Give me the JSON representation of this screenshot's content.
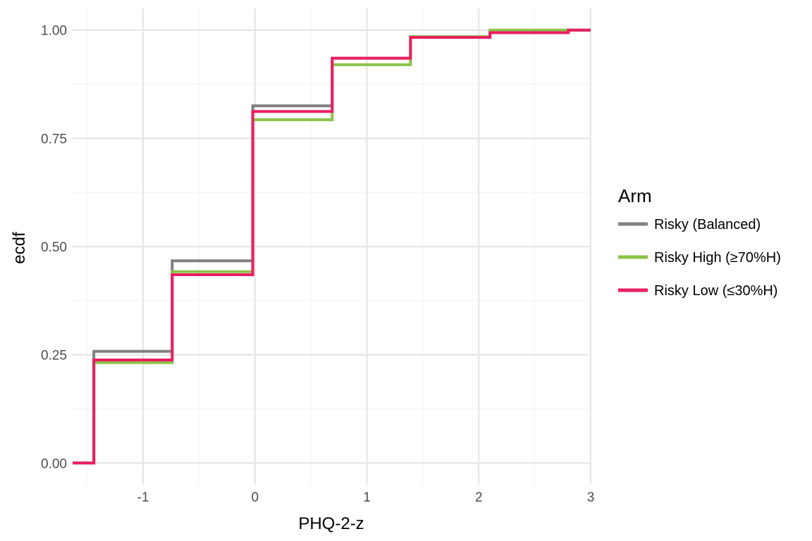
{
  "chart_data": {
    "type": "line",
    "subtype": "ecdf-step",
    "title": "",
    "xlabel": "PHQ-2-z",
    "ylabel": "ecdf",
    "xlim": [
      -1.63,
      3.0
    ],
    "ylim": [
      -0.05,
      1.05
    ],
    "x_major_ticks": [
      -1,
      0,
      1,
      2,
      3
    ],
    "x_tick_labels": [
      "-1",
      "0",
      "1",
      "2",
      "3"
    ],
    "x_minor_ticks": [
      -1.5,
      -0.5,
      0.5,
      1.5,
      2.5
    ],
    "y_major_ticks": [
      0,
      0.25,
      0.5,
      0.75,
      1.0
    ],
    "y_tick_labels": [
      "0.00",
      "0.25",
      "0.50",
      "0.75",
      "1.00"
    ],
    "y_minor_ticks": [
      0.125,
      0.375,
      0.625,
      0.875
    ],
    "grid": true,
    "legend": {
      "title": "Arm",
      "position": "right"
    },
    "series": [
      {
        "name": "Risky (Balanced)",
        "color": "#808080",
        "points": [
          [
            -1.63,
            0.0
          ],
          [
            -1.44,
            0.258
          ],
          [
            -0.74,
            0.467
          ],
          [
            -0.02,
            0.825
          ],
          [
            0.69,
            0.935
          ],
          [
            1.39,
            0.985
          ],
          [
            2.1,
            0.995
          ],
          [
            2.8,
            1.0
          ],
          [
            3.0,
            1.0
          ]
        ]
      },
      {
        "name": "Risky High (≥70%H)",
        "color": "#8BC34A",
        "points": [
          [
            -1.63,
            0.0
          ],
          [
            -1.44,
            0.232
          ],
          [
            -0.74,
            0.442
          ],
          [
            -0.02,
            0.793
          ],
          [
            0.69,
            0.92
          ],
          [
            1.39,
            0.985
          ],
          [
            2.1,
            1.0
          ],
          [
            3.0,
            1.0
          ]
        ]
      },
      {
        "name": "Risky Low (≤30%H)",
        "color": "#E91E63",
        "points": [
          [
            -1.63,
            0.0
          ],
          [
            -1.44,
            0.238
          ],
          [
            -0.74,
            0.435
          ],
          [
            -0.02,
            0.812
          ],
          [
            0.69,
            0.935
          ],
          [
            1.39,
            0.983
          ],
          [
            2.1,
            0.994
          ],
          [
            2.8,
            1.0
          ],
          [
            3.0,
            1.0
          ]
        ]
      }
    ]
  }
}
